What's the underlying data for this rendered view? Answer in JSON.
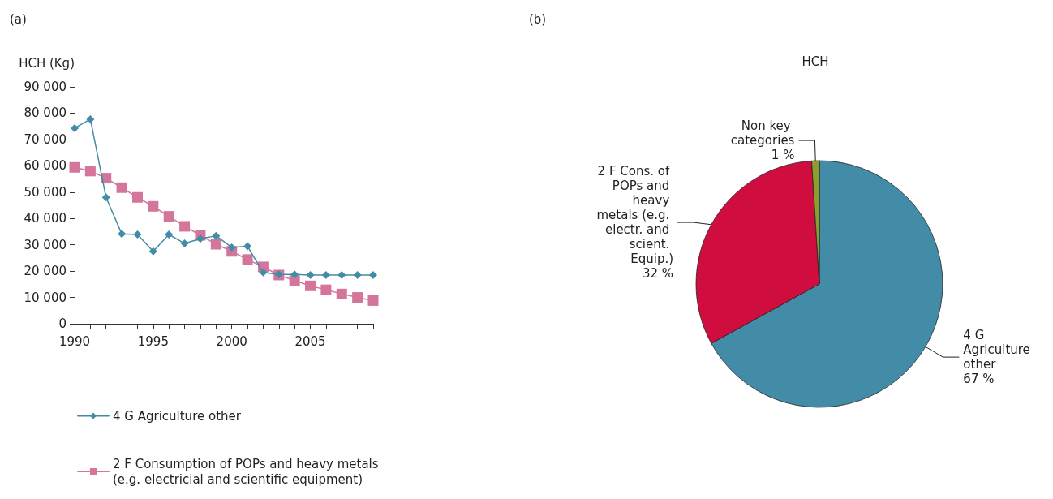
{
  "chart_data": [
    {
      "type": "line",
      "annotations": [
        "(a)"
      ],
      "ylabel": "HCH (Kg)",
      "x": [
        1990,
        1991,
        1992,
        1993,
        1994,
        1995,
        1996,
        1997,
        1998,
        1999,
        2000,
        2001,
        2002,
        2003,
        2004,
        2005,
        2006,
        2007,
        2008,
        2009
      ],
      "xlim": [
        1990,
        2009
      ],
      "xticks": [
        1990,
        {
          "value": 1991,
          "label": null
        },
        {
          "value": 1992,
          "label": null
        },
        {
          "value": 1993,
          "label": null
        },
        {
          "value": 1994,
          "label": null
        },
        1995,
        {
          "value": 1996,
          "label": null
        },
        {
          "value": 1997,
          "label": null
        },
        {
          "value": 1998,
          "label": null
        },
        {
          "value": 1999,
          "label": null
        },
        2000,
        {
          "value": 2001,
          "label": null
        },
        {
          "value": 2002,
          "label": null
        },
        {
          "value": 2003,
          "label": null
        },
        {
          "value": 2004,
          "label": null
        },
        2005,
        {
          "value": 2006,
          "label": null
        },
        {
          "value": 2007,
          "label": null
        },
        {
          "value": 2008,
          "label": null
        },
        {
          "value": 2009,
          "label": null
        }
      ],
      "ylim": [
        0,
        90000
      ],
      "yticks": [
        {
          "value": 0,
          "label": "0"
        },
        {
          "value": 10000,
          "label": "10 000"
        },
        {
          "value": 20000,
          "label": "20 000"
        },
        {
          "value": 30000,
          "label": "30 000"
        },
        {
          "value": 40000,
          "label": "40 000"
        },
        {
          "value": 50000,
          "label": "50 000"
        },
        {
          "value": 60000,
          "label": "60 000"
        },
        {
          "value": 70000,
          "label": "70 000"
        },
        {
          "value": 80000,
          "label": "80 000"
        },
        {
          "value": 90000,
          "label": "90 000"
        }
      ],
      "grid": false,
      "legend": "bottom left",
      "series": [
        {
          "name": "4 G Agriculture other",
          "color": "#438ca8",
          "marker": "diamond",
          "values": [
            74300,
            77700,
            48000,
            34100,
            33900,
            27500,
            33900,
            30500,
            32300,
            33400,
            29000,
            29400,
            19500,
            18700,
            18700,
            18500,
            18500,
            18500,
            18500,
            18500
          ]
        },
        {
          "name": "2 F Consumption of POPs and heavy metals (e.g. electricial and scientific equipment)",
          "color": "#d4769c",
          "marker": "square",
          "values": [
            59400,
            58000,
            55300,
            51700,
            48000,
            44600,
            40800,
            37000,
            33600,
            30200,
            27500,
            24400,
            21600,
            18500,
            16400,
            14400,
            12900,
            11300,
            10000,
            8800
          ]
        }
      ]
    },
    {
      "type": "pie",
      "title": "HCH",
      "annotations": [
        "(b)"
      ],
      "legend": false,
      "categories": [
        "4 G Agriculture other",
        "2 F Cons. of POPs and heavy metals (e.g. electr. and scient. Equip.)",
        "Non key categories"
      ],
      "values": [
        67,
        32,
        1
      ],
      "value_labels": [
        "67 %",
        "32 %",
        "1 %"
      ],
      "colors": [
        "#438ca8",
        "#cf0e3f",
        "#8f9d2c"
      ]
    }
  ]
}
